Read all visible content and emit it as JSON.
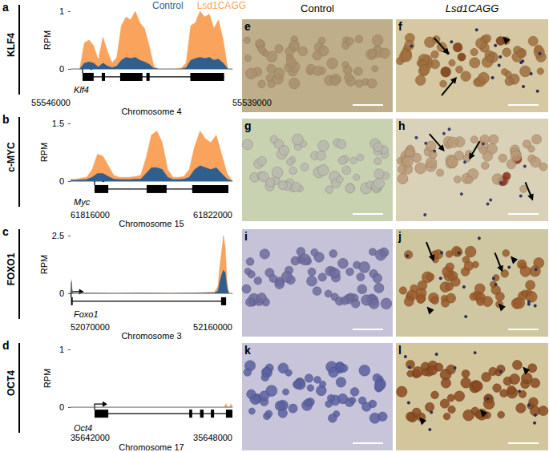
{
  "chart_data": [
    {
      "type": "area",
      "title": "a",
      "subtitle": "KLF4",
      "ylabel": "RPM",
      "xlabel": "Chromosome 4",
      "legend": "top",
      "grid": false,
      "x": [
        55546000,
        55545800,
        55545600,
        55545400,
        55545200,
        55545000,
        55544800,
        55544600,
        55544400,
        55544200,
        55544000,
        55543800,
        55543600,
        55543400,
        55543200,
        55543000,
        55542800,
        55542600,
        55542400,
        55542200,
        55542000,
        55541800,
        55541600,
        55541400,
        55541200,
        55541000,
        55540800,
        55540600,
        55540400,
        55540200,
        55540000,
        55539800,
        55539600,
        55539400,
        55539200,
        55539000
      ],
      "xlim": [
        55546000,
        55539000
      ],
      "xticks": [
        55546000,
        55539000
      ],
      "ylim": [
        0,
        1
      ],
      "yticks": [
        0,
        1
      ],
      "series": [
        {
          "name": "Control",
          "color": "#2f5f8f",
          "values": [
            0,
            0,
            0,
            0.1,
            0.12,
            0.1,
            0.03,
            0.1,
            0.05,
            0.02,
            0.05,
            0.15,
            0.2,
            0.18,
            0.2,
            0.15,
            0.12,
            0.08,
            0.01,
            0,
            0,
            0,
            0,
            0,
            0,
            0.02,
            0.15,
            0.18,
            0.2,
            0.18,
            0.2,
            0.15,
            0.17,
            0.1,
            0,
            0
          ]
        },
        {
          "name": "Lsd1CAGG",
          "color": "#f9a35c",
          "values": [
            0,
            0,
            0,
            0.45,
            0.5,
            0.4,
            0.15,
            0.55,
            0.3,
            0.1,
            0.2,
            0.75,
            0.9,
            0.85,
            1.0,
            0.8,
            0.7,
            0.4,
            0.05,
            0,
            0,
            0,
            0,
            0,
            0.02,
            0.1,
            0.75,
            0.8,
            1.0,
            0.9,
            0.95,
            0.7,
            0.85,
            0.5,
            0,
            0
          ]
        }
      ],
      "gene": {
        "name": "Klf4",
        "exons": [
          [
            55545480,
            55545000
          ],
          [
            55544650,
            55544510
          ],
          [
            55543855,
            55542890
          ],
          [
            55542720,
            55542580
          ],
          [
            55540820,
            55539360
          ]
        ]
      }
    },
    {
      "type": "area",
      "title": "b",
      "subtitle": "c-MYC",
      "ylabel": "RPM",
      "xlabel": "Chromosome 15",
      "grid": false,
      "x": [
        61816000,
        61816200,
        61816400,
        61816600,
        61816800,
        61817000,
        61817200,
        61817400,
        61817600,
        61817800,
        61818000,
        61818200,
        61818400,
        61818600,
        61818800,
        61819000,
        61819200,
        61819400,
        61819600,
        61819800,
        61820000,
        61820200,
        61820400,
        61820600,
        61820800,
        61821000,
        61821200,
        61821400,
        61821600,
        61821800,
        61822000
      ],
      "xlim": [
        61816000,
        61822000
      ],
      "xticks": [
        61816000,
        61822000
      ],
      "ylim": [
        0,
        1.5
      ],
      "yticks": [
        0,
        1.5
      ],
      "series": [
        {
          "name": "Control",
          "color": "#2f5f8f",
          "values": [
            0.02,
            0.02,
            0.03,
            0.04,
            0.1,
            0.2,
            0.2,
            0.12,
            0.05,
            0.04,
            0.04,
            0.04,
            0.05,
            0.05,
            0.2,
            0.35,
            0.35,
            0.3,
            0.1,
            0.04,
            0.04,
            0.05,
            0.1,
            0.3,
            0.4,
            0.35,
            0.3,
            0.35,
            0.2,
            0.05,
            0
          ]
        },
        {
          "name": "Lsd1CAGG",
          "color": "#f9a35c",
          "values": [
            0.05,
            0.05,
            0.08,
            0.1,
            0.3,
            0.7,
            0.65,
            0.4,
            0.15,
            0.1,
            0.1,
            0.1,
            0.12,
            0.15,
            0.6,
            1.2,
            1.3,
            1.0,
            0.3,
            0.1,
            0.1,
            0.12,
            0.3,
            0.9,
            1.3,
            1.1,
            1.0,
            1.2,
            0.7,
            0.2,
            0
          ]
        }
      ],
      "gene": {
        "name": "Myc",
        "exons": [
          [
            61816890,
            61817400
          ],
          [
            61818820,
            61819560
          ],
          [
            61820510,
            61821850
          ]
        ]
      }
    },
    {
      "type": "area",
      "title": "c",
      "subtitle": "FOXO1",
      "ylabel": "RPM",
      "xlabel": "Chromosome 3",
      "grid": false,
      "x": [
        52070000,
        52070300,
        52070500,
        52070800,
        52071500,
        52080000,
        52095000,
        52110000,
        52125000,
        52140000,
        52150000,
        52152000,
        52153000,
        52154000,
        52155000,
        52156000,
        52157000,
        52158000,
        52160000
      ],
      "xlim": [
        52070000,
        52160000
      ],
      "xticks": [
        52070000,
        52160000
      ],
      "ylim": [
        0,
        2.5
      ],
      "yticks": [
        0,
        2.5
      ],
      "series": [
        {
          "name": "Control",
          "color": "#2f5f8f",
          "values": [
            0,
            0.25,
            0.5,
            0.15,
            0,
            0.01,
            0,
            0.01,
            0,
            0.01,
            0.02,
            0.1,
            0.5,
            0.8,
            1.0,
            0.9,
            0.2,
            0,
            0
          ]
        },
        {
          "name": "Lsd1CAGG",
          "color": "#f9a35c",
          "values": [
            0,
            0.3,
            0.6,
            0.2,
            0,
            0.02,
            0.01,
            0.02,
            0.01,
            0.02,
            0.05,
            0.3,
            1.2,
            1.8,
            2.5,
            2.0,
            0.5,
            0,
            0
          ]
        }
      ],
      "gene": {
        "name": "Foxo1",
        "exons": [
          [
            52070300,
            52070800
          ],
          [
            52153700,
            52156500
          ]
        ]
      }
    },
    {
      "type": "area",
      "title": "d",
      "subtitle": "OCT4",
      "ylabel": "RPM",
      "xlabel": "Chromosome 17",
      "grid": false,
      "x": [
        35642000,
        35643000,
        35645000,
        35647000,
        35647700,
        35647760,
        35647820,
        35647900,
        35647950,
        35648000
      ],
      "xlim": [
        35642000,
        35648000
      ],
      "xticks": [
        35642000,
        35648000
      ],
      "ylim": [
        0,
        1
      ],
      "yticks": [
        0,
        1
      ],
      "series": [
        {
          "name": "Control",
          "color": "#2f5f8f",
          "values": [
            0,
            0,
            0,
            0,
            0,
            0,
            0,
            0,
            0,
            0
          ]
        },
        {
          "name": "Lsd1CAGG",
          "color": "#f9a35c",
          "values": [
            0,
            0,
            0,
            0,
            0,
            0.06,
            0,
            0,
            0.06,
            0
          ]
        }
      ],
      "gene": {
        "name": "Oct4",
        "exons": [
          [
            35642890,
            35643400
          ],
          [
            35646400,
            35646510
          ],
          [
            35646800,
            35646930
          ],
          [
            35647200,
            35647320
          ],
          [
            35647760,
            35648000
          ]
        ]
      }
    }
  ],
  "image_panels": {
    "columns": [
      "Control",
      "Lsd1CAGG"
    ],
    "labels": [
      [
        "e",
        "f"
      ],
      [
        "g",
        "h"
      ],
      [
        "i",
        "j"
      ],
      [
        "k",
        "l"
      ]
    ]
  }
}
